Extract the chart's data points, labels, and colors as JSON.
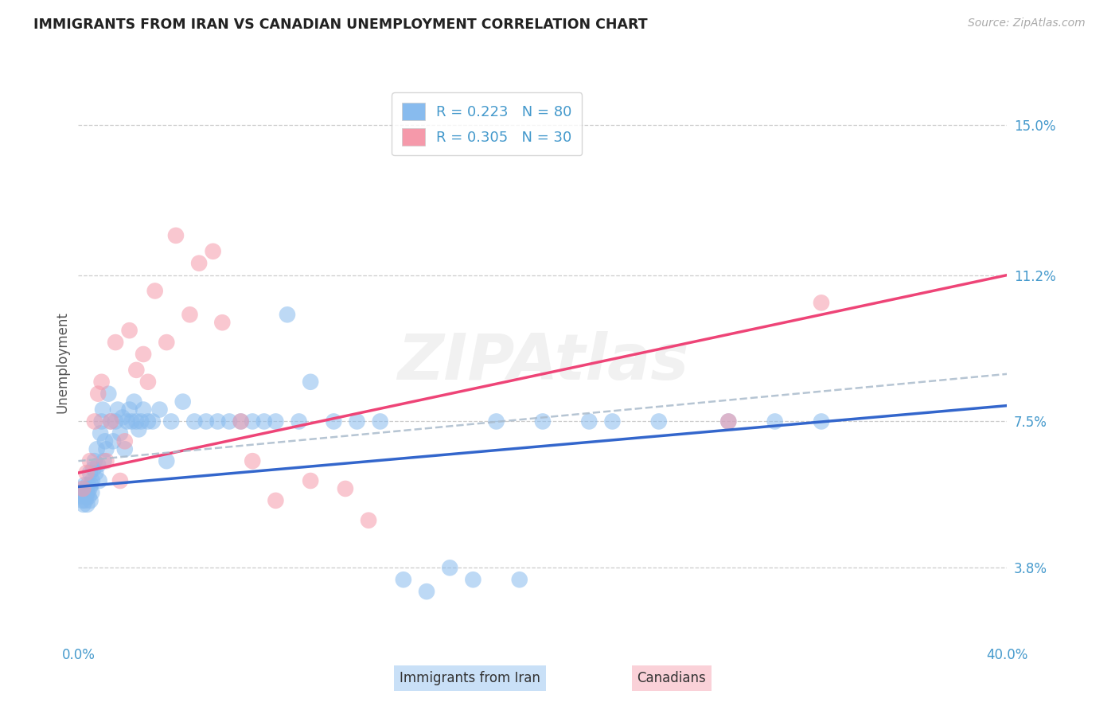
{
  "title": "IMMIGRANTS FROM IRAN VS CANADIAN UNEMPLOYMENT CORRELATION CHART",
  "source": "Source: ZipAtlas.com",
  "ylabel": "Unemployment",
  "ytick_labels": [
    "3.8%",
    "7.5%",
    "11.2%",
    "15.0%"
  ],
  "ytick_values": [
    3.8,
    7.5,
    11.2,
    15.0
  ],
  "xtick_labels": [
    "0.0%",
    "40.0%"
  ],
  "xtick_values": [
    0.0,
    40.0
  ],
  "xmin": 0.0,
  "xmax": 40.0,
  "ymin": 2.0,
  "ymax": 16.0,
  "legend_label_blue": "Immigrants from Iran",
  "legend_label_pink": "Canadians",
  "blue_dot_color": "#88bbee",
  "pink_dot_color": "#f599aa",
  "blue_line_color": "#3366cc",
  "pink_line_color": "#ee4477",
  "dashed_line_color": "#aabbcc",
  "axis_color": "#4499cc",
  "grid_color": "#cccccc",
  "legend_R_blue": "R = 0.223",
  "legend_N_blue": "N = 80",
  "legend_R_pink": "R = 0.305",
  "legend_N_pink": "N = 30",
  "blue_reg_x0": 0.0,
  "blue_reg_y0": 5.85,
  "blue_reg_x1": 40.0,
  "blue_reg_y1": 7.9,
  "pink_reg_x0": 0.0,
  "pink_reg_y0": 6.2,
  "pink_reg_x1": 40.0,
  "pink_reg_y1": 11.2,
  "dash_reg_x0": 0.0,
  "dash_reg_y0": 6.5,
  "dash_reg_x1": 40.0,
  "dash_reg_y1": 8.7,
  "blue_scatter_x": [
    0.15,
    0.18,
    0.2,
    0.22,
    0.25,
    0.28,
    0.3,
    0.32,
    0.35,
    0.38,
    0.4,
    0.42,
    0.45,
    0.48,
    0.5,
    0.52,
    0.55,
    0.58,
    0.6,
    0.65,
    0.7,
    0.75,
    0.8,
    0.85,
    0.9,
    0.95,
    1.0,
    1.05,
    1.1,
    1.15,
    1.2,
    1.3,
    1.4,
    1.5,
    1.6,
    1.7,
    1.8,
    1.9,
    2.0,
    2.1,
    2.2,
    2.3,
    2.4,
    2.5,
    2.6,
    2.7,
    2.8,
    3.0,
    3.2,
    3.5,
    3.8,
    4.0,
    4.5,
    5.0,
    5.5,
    6.0,
    6.5,
    7.0,
    7.5,
    8.0,
    8.5,
    9.0,
    9.5,
    10.0,
    11.0,
    12.0,
    13.0,
    14.0,
    15.0,
    16.0,
    17.0,
    18.0,
    19.0,
    20.0,
    22.0,
    23.0,
    25.0,
    28.0,
    30.0,
    32.0
  ],
  "blue_scatter_y": [
    5.8,
    5.5,
    5.6,
    5.4,
    5.7,
    5.9,
    5.5,
    5.8,
    5.6,
    5.4,
    5.7,
    5.9,
    5.6,
    5.8,
    6.2,
    5.5,
    5.9,
    5.7,
    6.0,
    6.3,
    6.5,
    6.2,
    6.8,
    6.4,
    6.0,
    7.2,
    7.5,
    7.8,
    6.5,
    7.0,
    6.8,
    8.2,
    7.5,
    7.0,
    7.5,
    7.8,
    7.2,
    7.6,
    6.8,
    7.5,
    7.8,
    7.5,
    8.0,
    7.5,
    7.3,
    7.5,
    7.8,
    7.5,
    7.5,
    7.8,
    6.5,
    7.5,
    8.0,
    7.5,
    7.5,
    7.5,
    7.5,
    7.5,
    7.5,
    7.5,
    7.5,
    10.2,
    7.5,
    8.5,
    7.5,
    7.5,
    7.5,
    3.5,
    3.2,
    3.8,
    3.5,
    7.5,
    3.5,
    7.5,
    7.5,
    7.5,
    7.5,
    7.5,
    7.5,
    7.5
  ],
  "pink_scatter_x": [
    0.2,
    0.35,
    0.5,
    0.7,
    0.85,
    1.0,
    1.2,
    1.4,
    1.6,
    1.8,
    2.0,
    2.2,
    2.5,
    2.8,
    3.0,
    3.3,
    3.8,
    4.2,
    4.8,
    5.2,
    5.8,
    6.2,
    7.0,
    7.5,
    8.5,
    10.0,
    11.5,
    12.5,
    28.0,
    32.0
  ],
  "pink_scatter_y": [
    5.8,
    6.2,
    6.5,
    7.5,
    8.2,
    8.5,
    6.5,
    7.5,
    9.5,
    6.0,
    7.0,
    9.8,
    8.8,
    9.2,
    8.5,
    10.8,
    9.5,
    12.2,
    10.2,
    11.5,
    11.8,
    10.0,
    7.5,
    6.5,
    5.5,
    6.0,
    5.8,
    5.0,
    7.5,
    10.5
  ]
}
